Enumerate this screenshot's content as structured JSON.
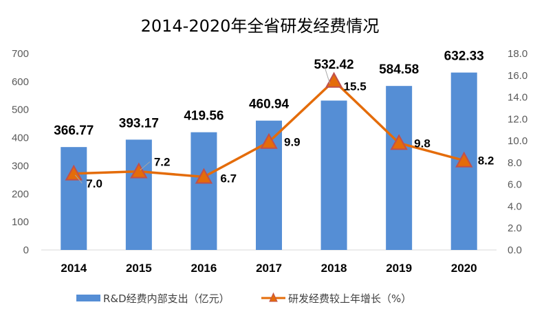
{
  "chart_data": {
    "type": "bar+line",
    "title": "2014-2020年全省研发经费情况",
    "categories": [
      "2014",
      "2015",
      "2016",
      "2017",
      "2018",
      "2019",
      "2020"
    ],
    "series": [
      {
        "name": "R&D经费内部支出（亿元）",
        "type": "bar",
        "axis": "left",
        "color": "#558ED5",
        "values": [
          366.77,
          393.17,
          419.56,
          460.94,
          532.42,
          584.58,
          632.33
        ],
        "labels": [
          "366.77",
          "393.17",
          "419.56",
          "460.94",
          "532.42",
          "584.58",
          "632.33"
        ]
      },
      {
        "name": "研发经费较上年增长（%）",
        "type": "line",
        "axis": "right",
        "color": "#E46C0A",
        "marker": "triangle",
        "values": [
          7.0,
          7.2,
          6.7,
          9.9,
          15.5,
          9.8,
          8.2
        ],
        "labels": [
          "7.0",
          "7.2",
          "6.7",
          "9.9",
          "15.5",
          "9.8",
          "8.2"
        ]
      }
    ],
    "left_axis": {
      "ylim": [
        0,
        700
      ],
      "ticks": [
        "0",
        "100",
        "200",
        "300",
        "400",
        "500",
        "600",
        "700"
      ]
    },
    "right_axis": {
      "ylim": [
        0,
        18
      ],
      "ticks": [
        "0.0",
        "2.0",
        "4.0",
        "6.0",
        "8.0",
        "10.0",
        "12.0",
        "14.0",
        "16.0",
        "18.0"
      ]
    },
    "legend": "bottom"
  }
}
